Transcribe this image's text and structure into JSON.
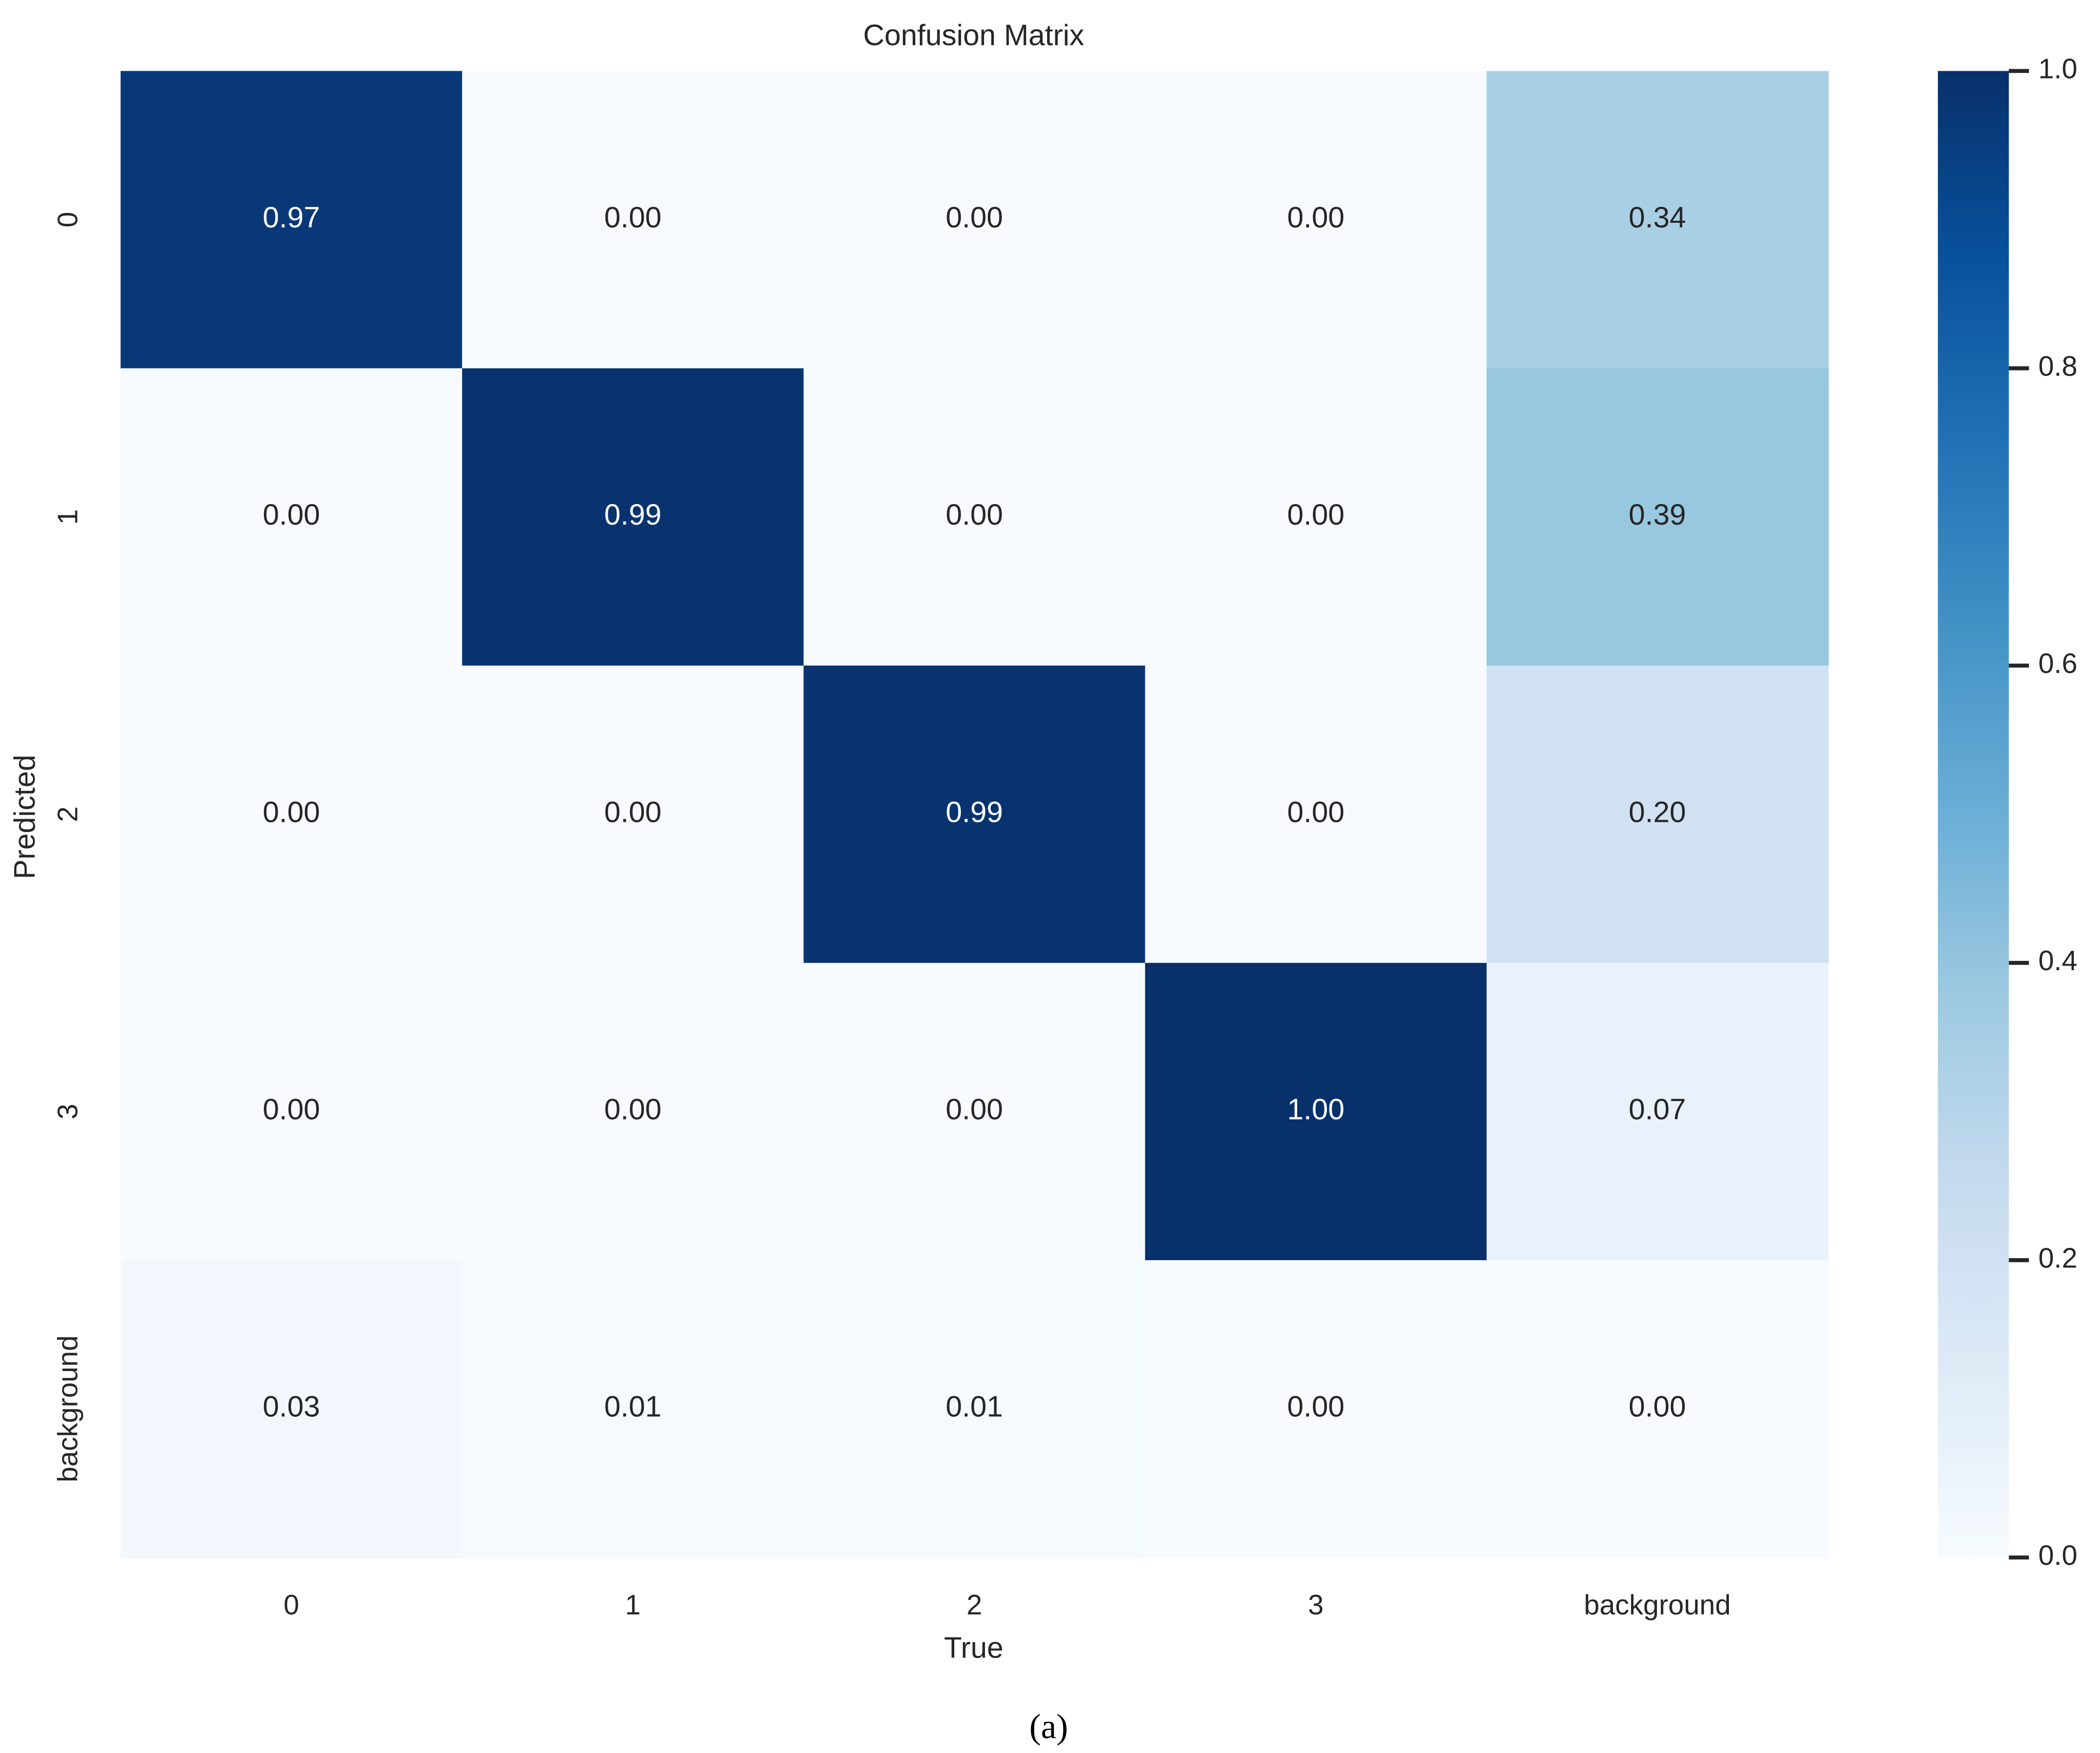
{
  "chart_data": {
    "type": "heatmap",
    "title": "Confusion Matrix",
    "x_label": "True",
    "y_label": "Predicted",
    "caption": "(a)",
    "x_categories": [
      "0",
      "1",
      "2",
      "3",
      "background"
    ],
    "y_categories": [
      "0",
      "1",
      "2",
      "3",
      "background"
    ],
    "values": [
      [
        0.97,
        0,
        0,
        0,
        0.34
      ],
      [
        0,
        0.99,
        0,
        0,
        0.39
      ],
      [
        0,
        0,
        0.99,
        0,
        0.2
      ],
      [
        0,
        0,
        0,
        1.0,
        0.07
      ],
      [
        0.03,
        0.01,
        0.01,
        0,
        0.0
      ]
    ],
    "value_labels": [
      [
        "0.97",
        "0.00",
        "0.00",
        "0.00",
        "0.34"
      ],
      [
        "0.00",
        "0.99",
        "0.00",
        "0.00",
        "0.39"
      ],
      [
        "0.00",
        "0.00",
        "0.99",
        "0.00",
        "0.20"
      ],
      [
        "0.00",
        "0.00",
        "0.00",
        "1.00",
        "0.07"
      ],
      [
        "0.03",
        "0.01",
        "0.01",
        "0.00",
        "0.00"
      ]
    ],
    "colormap": [
      "#f7fbff",
      "#deebf7",
      "#c6dbef",
      "#9ecae1",
      "#6baed6",
      "#4292c6",
      "#2171b5",
      "#08519c",
      "#08306b"
    ],
    "zlim": [
      0,
      1
    ],
    "zticks": [
      {
        "value": 0,
        "label": "0.0"
      },
      0.2,
      0.4,
      0.6,
      0.8,
      {
        "value": 1,
        "label": "1.0"
      }
    ]
  }
}
